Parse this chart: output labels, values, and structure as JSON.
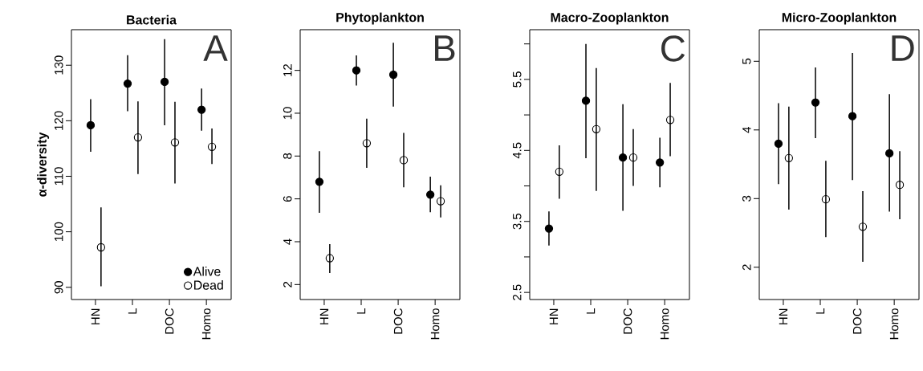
{
  "chart_data": [
    {
      "type": "scatter",
      "title": "Bacteria",
      "ylabel": "α-diversity",
      "categories": [
        "HN",
        "L",
        "DOC",
        "Homo"
      ],
      "marker": "circle",
      "legend": "bottom right",
      "annotations": [
        "A"
      ],
      "ylim": [
        87.8,
        136.4
      ],
      "yticks": [
        90,
        100,
        110,
        120,
        130
      ],
      "series": [
        {
          "name": "Alive",
          "color": "#000000",
          "values": [
            119.2,
            126.7,
            127.0,
            122.0
          ],
          "errors": [
            [
              114.4,
              123.9
            ],
            [
              121.7,
              131.8
            ],
            [
              119.2,
              134.7
            ],
            [
              118.2,
              125.8
            ]
          ]
        },
        {
          "name": "Dead",
          "color": "#000000",
          "values": [
            97.2,
            117.0,
            116.1,
            115.3
          ],
          "errors": [
            [
              90.2,
              104.4
            ],
            [
              110.4,
              123.5
            ],
            [
              108.7,
              123.4
            ],
            [
              112.2,
              118.6
            ]
          ]
        }
      ]
    },
    {
      "type": "scatter",
      "title": "Phytoplankton",
      "categories": [
        "HN",
        "L",
        "DOC",
        "Homo"
      ],
      "marker": "circle",
      "annotations": [
        "B"
      ],
      "ylim": [
        1.3,
        13.9
      ],
      "yticks": [
        2,
        4,
        6,
        8,
        10,
        12
      ],
      "series": [
        {
          "color": "#000000",
          "values": [
            6.8,
            12.0,
            11.8,
            6.2
          ],
          "errors": [
            [
              5.35,
              8.23
            ],
            [
              11.29,
              12.7
            ],
            [
              10.31,
              13.29
            ],
            [
              5.38,
              7.04
            ]
          ]
        },
        {
          "color": "#000000",
          "values": [
            3.23,
            8.6,
            7.81,
            5.89
          ],
          "errors": [
            [
              2.54,
              3.89
            ],
            [
              7.45,
              9.75
            ],
            [
              6.54,
              9.08
            ],
            [
              5.13,
              6.63
            ]
          ]
        }
      ]
    },
    {
      "type": "scatter",
      "title": "Macro-Zooplankton",
      "categories": [
        "HN",
        "L",
        "DOC",
        "Homo"
      ],
      "marker": "circle",
      "annotations": [
        "C"
      ],
      "ylim": [
        2.4,
        6.2
      ],
      "yticks": [
        2.5,
        {
          "value": 3,
          "label": null
        },
        3.5,
        {
          "value": 4,
          "label": null
        },
        4.5,
        {
          "value": 5,
          "label": null
        },
        5.5,
        {
          "value": 6,
          "label": null
        }
      ],
      "series": [
        {
          "color": "#000000",
          "values": [
            3.4,
            5.2,
            4.4,
            4.33
          ],
          "errors": [
            [
              3.16,
              3.64
            ],
            [
              4.39,
              6.0
            ],
            [
              3.65,
              5.15
            ],
            [
              3.98,
              4.68
            ]
          ]
        },
        {
          "color": "#000000",
          "values": [
            4.2,
            4.8,
            4.4,
            4.93
          ],
          "errors": [
            [
              3.82,
              4.57
            ],
            [
              3.93,
              5.66
            ],
            [
              4.0,
              4.8
            ],
            [
              4.42,
              5.45
            ]
          ]
        }
      ]
    },
    {
      "type": "scatter",
      "title": "Micro-Zooplankton",
      "categories": [
        "HN",
        "L",
        "DOC",
        "Homo"
      ],
      "marker": "circle",
      "annotations": [
        "D"
      ],
      "ylim": [
        1.53,
        5.46
      ],
      "yticks": [
        2,
        3,
        4,
        5
      ],
      "series": [
        {
          "color": "#000000",
          "values": [
            3.8,
            4.4,
            4.2,
            3.66
          ],
          "errors": [
            [
              3.21,
              4.39
            ],
            [
              3.88,
              4.91
            ],
            [
              3.27,
              5.12
            ],
            [
              2.81,
              4.52
            ]
          ]
        },
        {
          "color": "#000000",
          "values": [
            3.59,
            2.99,
            2.59,
            3.2
          ],
          "errors": [
            [
              2.84,
              4.34
            ],
            [
              2.44,
              3.55
            ],
            [
              2.08,
              3.11
            ],
            [
              2.7,
              3.69
            ]
          ]
        }
      ]
    }
  ]
}
